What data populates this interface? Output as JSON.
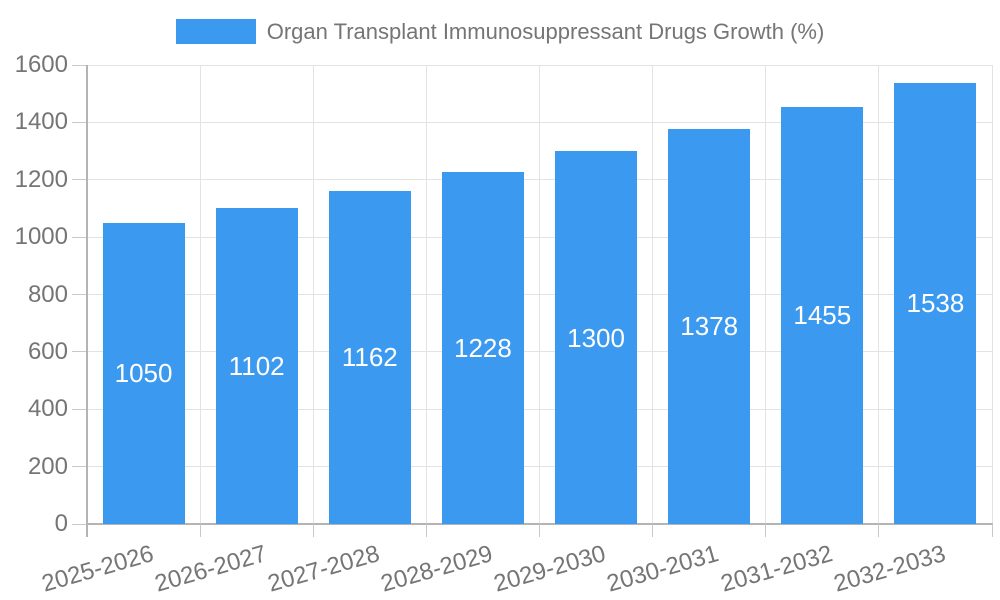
{
  "chart_data": {
    "type": "bar",
    "title": "Organ Transplant Immunosuppressant Drugs Growth (%)",
    "legend_position": "top-center",
    "categories": [
      "2025-2026",
      "2026-2027",
      "2027-2028",
      "2028-2029",
      "2029-2030",
      "2030-2031",
      "2031-2032",
      "2032-2033"
    ],
    "series": [
      {
        "name": "Organ Transplant Immunosuppressant Drugs Growth (%)",
        "values": [
          1050,
          1102,
          1162,
          1228,
          1300,
          1378,
          1455,
          1538
        ]
      }
    ],
    "bar_value_labels": [
      "1050",
      "1102",
      "1162",
      "1228",
      "1300",
      "1378",
      "1455",
      "1538"
    ],
    "xlabel": "",
    "ylabel": "",
    "ylim": [
      0,
      1600
    ],
    "yticks": [
      0,
      200,
      400,
      600,
      800,
      1000,
      1200,
      1400,
      1600
    ],
    "grid": true,
    "x_label_rotation_deg": -16,
    "colors": {
      "bar": "#3C99F0",
      "bar_label": "#FFFFFF",
      "axis_text": "#757575",
      "gridline": "#E3E3E3",
      "axis_line": "#B4B4B4",
      "tick": "#C9C9C9",
      "background": "#FFFFFF"
    }
  }
}
